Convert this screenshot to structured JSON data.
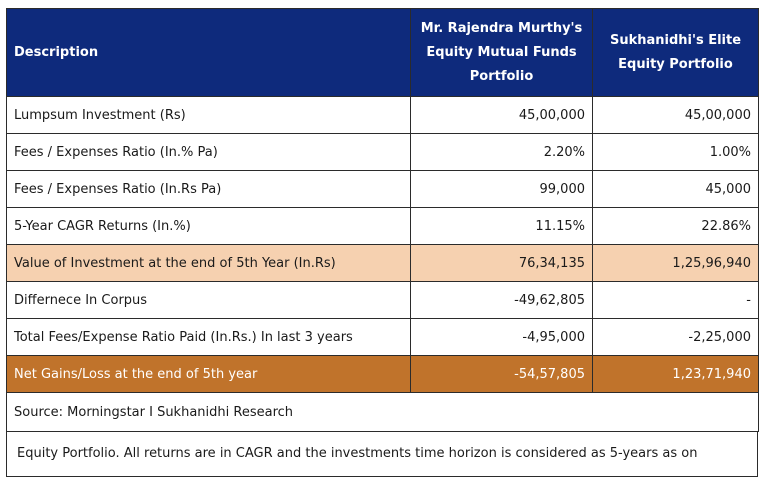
{
  "table": {
    "headers": {
      "description": "Description",
      "col1": "Mr. Rajendra Murthy's Equity Mutual Funds Portfolio",
      "col2": "Sukhanidhi's Elite Equity Portfolio"
    },
    "rows": [
      {
        "label": "Lumpsum Investment  (Rs)",
        "v1": "45,00,000",
        "v2": "45,00,000"
      },
      {
        "label": "Fees / Expenses Ratio (In.% Pa)",
        "v1": "2.20%",
        "v2": "1.00%"
      },
      {
        "label": "Fees / Expenses Ratio (In.Rs Pa)",
        "v1": "99,000",
        "v2": "45,000"
      },
      {
        "label": "5-Year CAGR Returns (In.%)",
        "v1": "11.15%",
        "v2": "22.86%"
      },
      {
        "label": "Value of Investment at the end of 5th Year (In.Rs)",
        "v1": "76,34,135",
        "v2": "1,25,96,940"
      },
      {
        "label": "Differnece In Corpus",
        "v1": "-49,62,805",
        "v2": "-"
      },
      {
        "label": "Total Fees/Expense Ratio Paid (In.Rs.) In last 3 years",
        "v1": "-4,95,000",
        "v2": "-2,25,000"
      },
      {
        "label": "Net Gains/Loss at the end of 5th year",
        "v1": "-54,57,805",
        "v2": "1,23,71,940"
      }
    ],
    "source": "Source: Morningstar I Sukhanidhi Research"
  },
  "footnote": {
    "line": "Equity Portfolio. All returns are in CAGR and the investments time horizon is considered as 5-years as on"
  }
}
